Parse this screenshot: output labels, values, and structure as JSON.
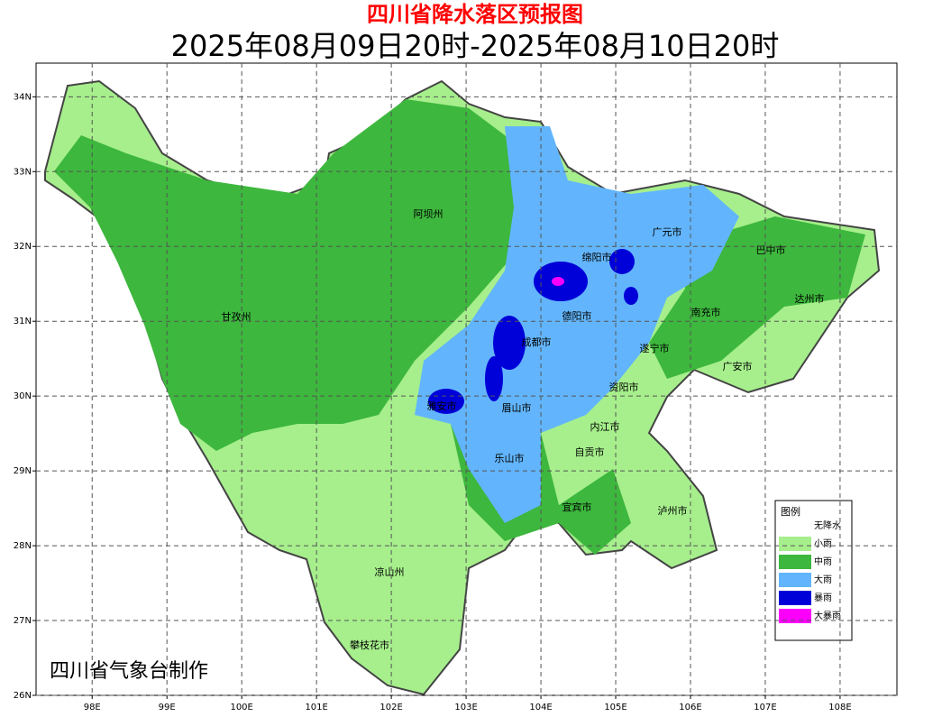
{
  "header": {
    "title": "四川省降水落区预报图",
    "subtitle": "2025年08月09日20时-2025年08月10日20时"
  },
  "map": {
    "xlim": [
      97.25,
      108.76
    ],
    "ylim": [
      26,
      34.45
    ],
    "xticks": [
      {
        "value": 98,
        "label": "98E"
      },
      {
        "value": 99,
        "label": "99E"
      },
      {
        "value": 100,
        "label": "100E"
      },
      {
        "value": 101,
        "label": "101E"
      },
      {
        "value": 102,
        "label": "102E"
      },
      {
        "value": 103,
        "label": "103E"
      },
      {
        "value": 104,
        "label": "104E"
      },
      {
        "value": 105,
        "label": "105E"
      },
      {
        "value": 106,
        "label": "106E"
      },
      {
        "value": 107,
        "label": "107E"
      },
      {
        "value": 108,
        "label": "108E"
      }
    ],
    "yticks": [
      {
        "value": 26,
        "label": "26N"
      },
      {
        "value": 27,
        "label": "27N"
      },
      {
        "value": 28,
        "label": "28N"
      },
      {
        "value": 29,
        "label": "29N"
      },
      {
        "value": 30,
        "label": "30N"
      },
      {
        "value": 31,
        "label": "31N"
      },
      {
        "value": 32,
        "label": "32N"
      },
      {
        "value": 33,
        "label": "33N"
      },
      {
        "value": 34,
        "label": "34N"
      }
    ],
    "cities": [
      "阿坝州",
      "广元市",
      "绵阳市",
      "巴中市",
      "达州市",
      "德阳市",
      "南充市",
      "甘孜州",
      "成都市",
      "遂宁市",
      "广安市",
      "资阳市",
      "雅安市",
      "眉山市",
      "内江市",
      "自贡市",
      "乐山市",
      "宜宾市",
      "泸州市",
      "凉山州",
      "攀枝花市"
    ],
    "legend": {
      "title": "图例",
      "items": [
        {
          "label": "无降水",
          "color": "#ffffff"
        },
        {
          "label": "小雨",
          "color": "#a6ef8c"
        },
        {
          "label": "中雨",
          "color": "#3db73d"
        },
        {
          "label": "大雨",
          "color": "#62b5fc"
        },
        {
          "label": "暴雨",
          "color": "#0000d8"
        },
        {
          "label": "大暴雨",
          "color": "#fb00fb"
        }
      ]
    },
    "credit": "四川省气象台制作"
  }
}
